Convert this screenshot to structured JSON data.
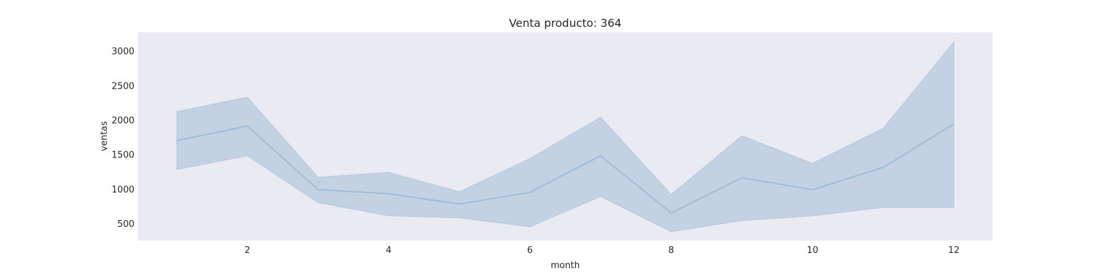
{
  "chart_data": {
    "type": "line",
    "title": "Venta producto: 364",
    "xlabel": "month",
    "ylabel": "ventas",
    "xlim": [
      0.45,
      12.55
    ],
    "ylim": [
      250,
      3270
    ],
    "xticks": [
      2,
      4,
      6,
      8,
      10,
      12
    ],
    "yticks": [
      500,
      1000,
      1500,
      2000,
      2500,
      3000
    ],
    "grid": false,
    "legend": "none",
    "x": [
      1,
      2,
      3,
      4,
      5,
      6,
      7,
      8,
      9,
      10,
      11,
      12
    ],
    "series": [
      {
        "values": [
          1700,
          1910,
          990,
          930,
          780,
          950,
          1480,
          650,
          1160,
          990,
          1310,
          1940
        ],
        "ci_upper": [
          2120,
          2330,
          1170,
          1240,
          960,
          1440,
          2040,
          920,
          1770,
          1370,
          1880,
          3130
        ],
        "ci_lower": [
          1280,
          1480,
          800,
          610,
          580,
          450,
          890,
          380,
          540,
          610,
          730,
          730
        ]
      }
    ],
    "colors": {
      "plot_background": "#eaeaf2",
      "line": "#9ebbd8",
      "band_fill": "#c3d2e2"
    }
  }
}
